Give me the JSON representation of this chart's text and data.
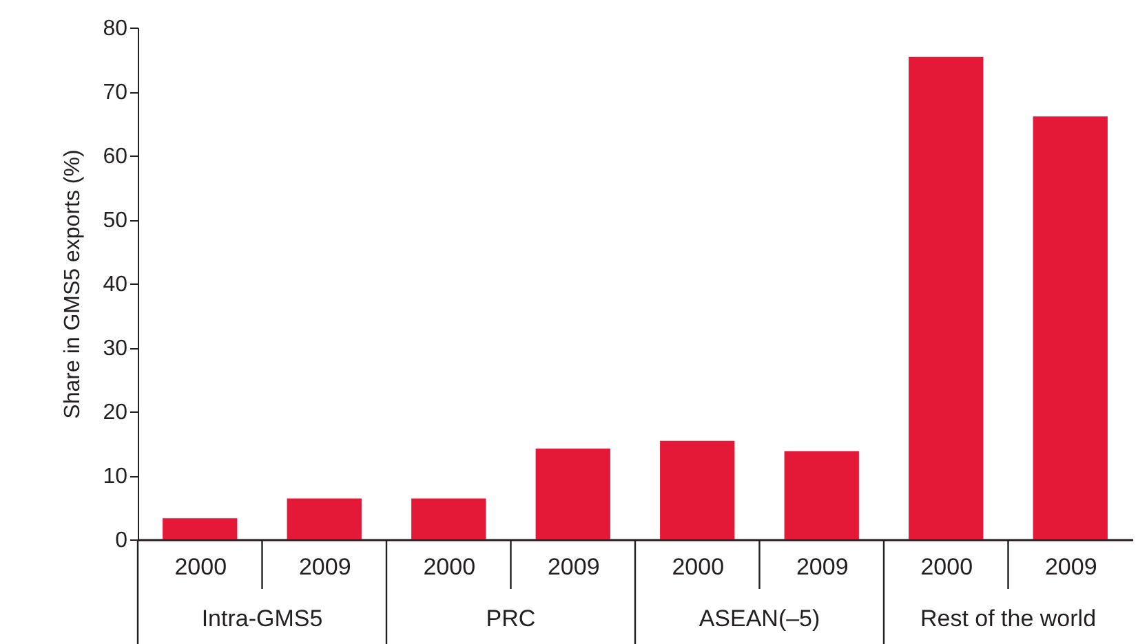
{
  "chart_data": {
    "type": "bar",
    "ylabel": "Share in GMS5 exports (%)",
    "categories": [
      "2000",
      "2009",
      "2000",
      "2009",
      "2000",
      "2009",
      "2000",
      "2009"
    ],
    "values": [
      3.3,
      6.4,
      6.4,
      14.2,
      15.4,
      13.8,
      75.4,
      66.1
    ],
    "color": "#e31937",
    "ylim": [
      0,
      80
    ],
    "yticks": [
      0,
      10,
      20,
      30,
      40,
      50,
      60,
      70,
      80
    ],
    "annotations": [
      "Intra-GMS5",
      "PRC",
      "ASEAN(–5)",
      "Rest of the world"
    ]
  }
}
